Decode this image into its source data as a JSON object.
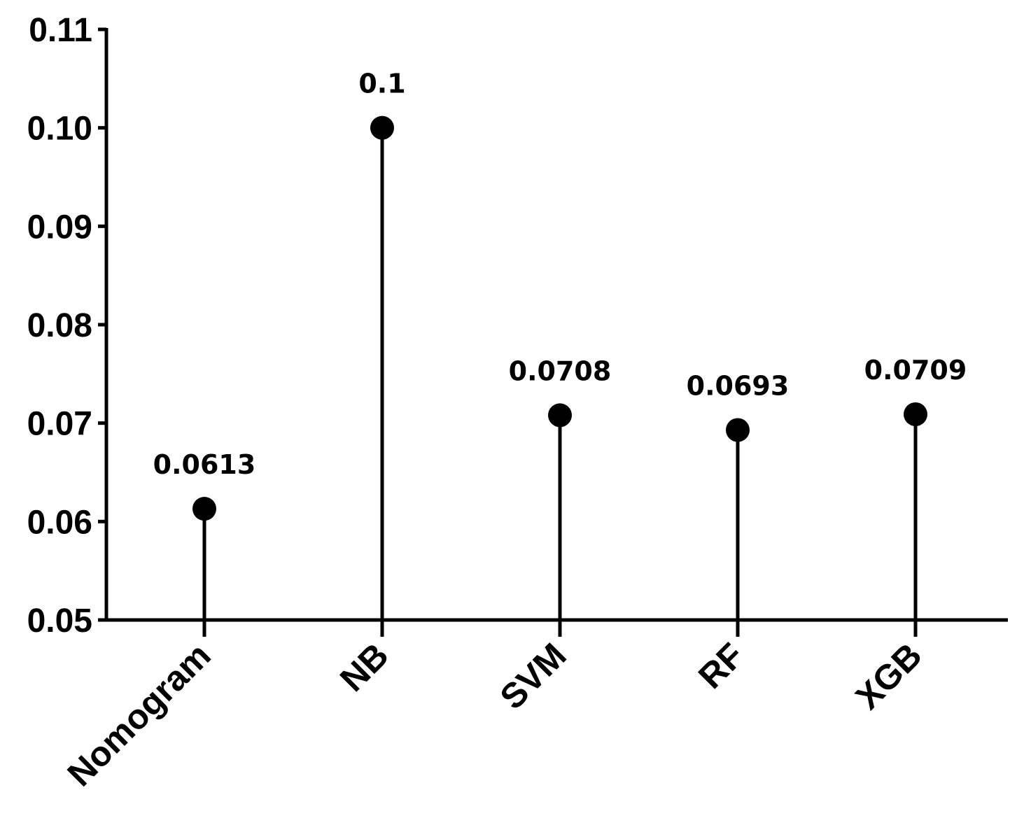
{
  "chart_data": {
    "type": "lollipop",
    "categories": [
      "Nomogram",
      "NB",
      "SVM",
      "RF",
      "XGB"
    ],
    "values": [
      0.0613,
      0.1,
      0.0708,
      0.0693,
      0.0709
    ],
    "data_labels": [
      "0.0613",
      "0.1",
      "0.0708",
      "0.0693",
      "0.0709"
    ],
    "title": "",
    "xlabel": "",
    "ylabel": "",
    "ylim": [
      0.05,
      0.11
    ],
    "yticks": [
      0.05,
      0.06,
      0.07,
      0.08,
      0.09,
      0.1,
      0.11
    ],
    "ytick_labels": [
      "0.05",
      "0.06",
      "0.07",
      "0.08",
      "0.09",
      "0.10",
      "0.11"
    ],
    "grid": false,
    "legend": "none",
    "colors": {
      "marker": "#000000",
      "axis": "#000000"
    }
  }
}
